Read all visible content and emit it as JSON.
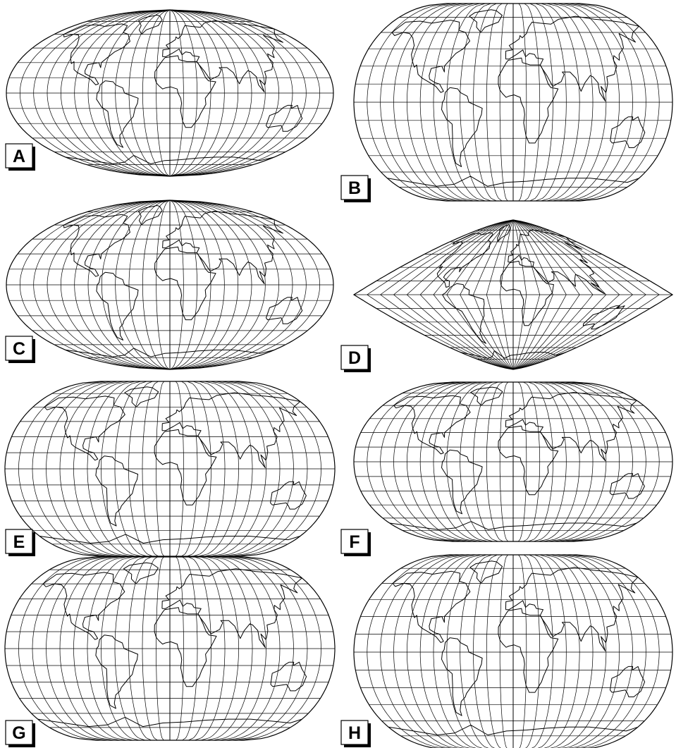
{
  "figure": {
    "panels": [
      {
        "id": "A",
        "label": "A",
        "projection_shape": "ellipse"
      },
      {
        "id": "B",
        "label": "B",
        "projection_shape": "flat-polar-tall"
      },
      {
        "id": "C",
        "label": "C",
        "projection_shape": "ellipse"
      },
      {
        "id": "D",
        "label": "D",
        "projection_shape": "pointed-poles"
      },
      {
        "id": "E",
        "label": "E",
        "projection_shape": "flat-polar-tall"
      },
      {
        "id": "F",
        "label": "F",
        "projection_shape": "flat-polar"
      },
      {
        "id": "G",
        "label": "G",
        "projection_shape": "flat-polar"
      },
      {
        "id": "H",
        "label": "H",
        "projection_shape": "flat-polar-tall"
      }
    ],
    "graticule": {
      "meridian_spacing_deg": 15,
      "parallel_spacing_deg": 15
    },
    "colors": {
      "line": "#000000",
      "background": "#ffffff",
      "label_box": "#ffffff",
      "label_shadow": "#000000"
    }
  }
}
